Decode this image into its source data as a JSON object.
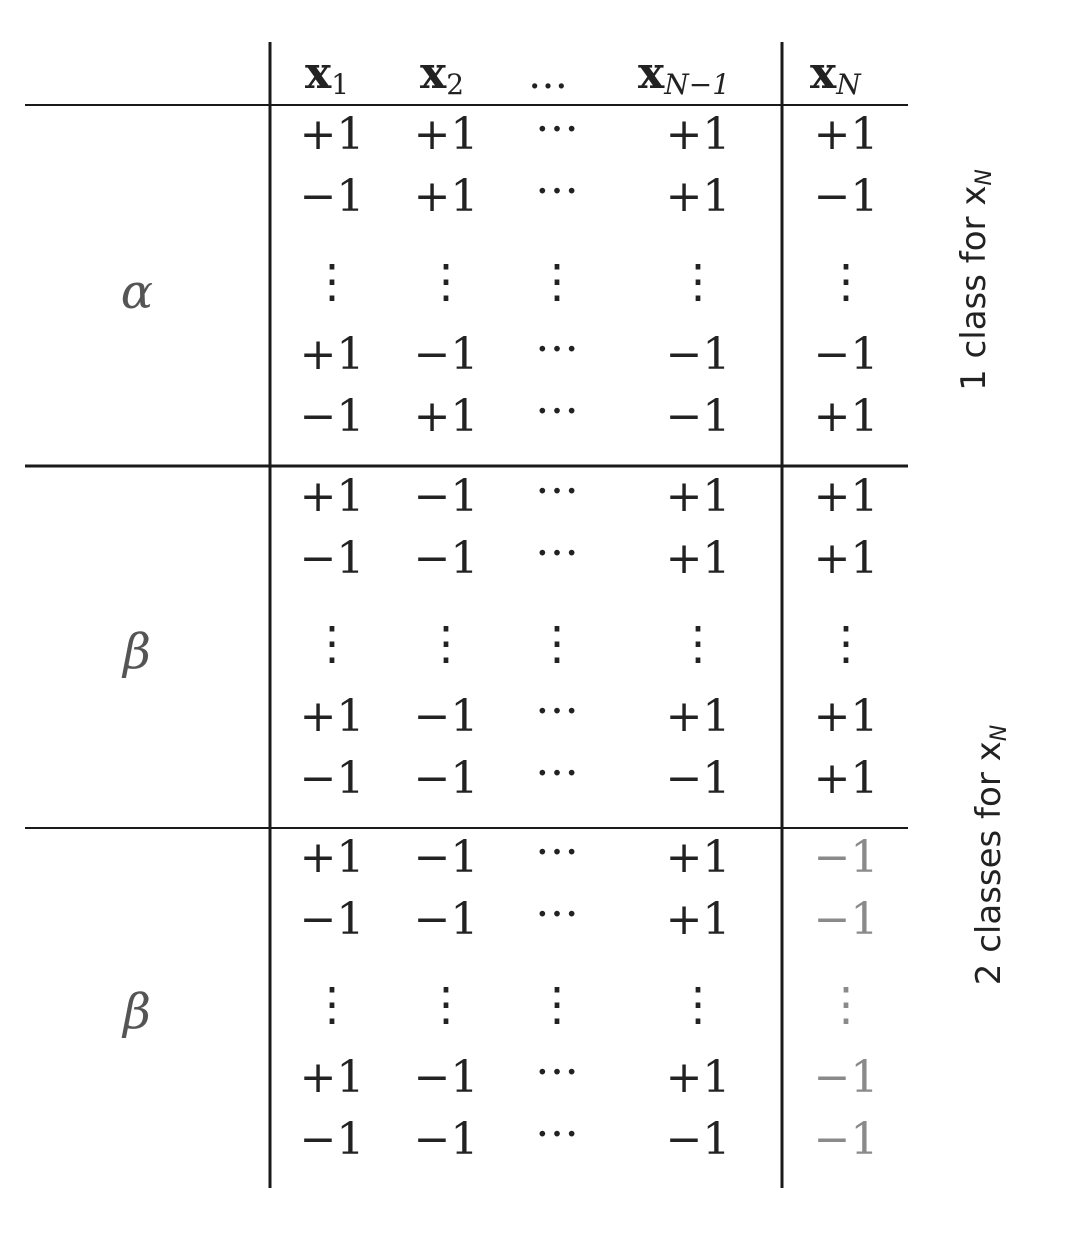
{
  "header": {
    "columns": [
      {
        "base": "x",
        "sub": "1"
      },
      {
        "base": "x",
        "sub": "2"
      },
      {
        "base": "…",
        "sub": ""
      },
      {
        "base": "x",
        "sub": "N−1"
      },
      {
        "base": "x",
        "sub": "N"
      }
    ]
  },
  "groups": [
    {
      "label": "α",
      "rows": [
        [
          "+1",
          "+1",
          "…",
          "+1",
          "+1"
        ],
        [
          "−1",
          "+1",
          "…",
          "+1",
          "−1"
        ],
        [
          "⋮",
          "⋮",
          "⋮",
          "⋮",
          "⋮"
        ],
        [
          "+1",
          "−1",
          "…",
          "−1",
          "−1"
        ],
        [
          "−1",
          "+1",
          "…",
          "−1",
          "+1"
        ]
      ]
    },
    {
      "label": "β",
      "rows": [
        [
          "+1",
          "−1",
          "…",
          "+1",
          "+1"
        ],
        [
          "−1",
          "−1",
          "…",
          "+1",
          "+1"
        ],
        [
          "⋮",
          "⋮",
          "⋮",
          "⋮",
          "⋮"
        ],
        [
          "+1",
          "−1",
          "…",
          "+1",
          "+1"
        ],
        [
          "−1",
          "−1",
          "…",
          "−1",
          "+1"
        ]
      ]
    },
    {
      "label": "β",
      "rows": [
        [
          "+1",
          "−1",
          "…",
          "+1",
          "−1"
        ],
        [
          "−1",
          "−1",
          "…",
          "+1",
          "−1"
        ],
        [
          "⋮",
          "⋮",
          "⋮",
          "⋮",
          "⋮"
        ],
        [
          "+1",
          "−1",
          "…",
          "+1",
          "−1"
        ],
        [
          "−1",
          "−1",
          "…",
          "−1",
          "−1"
        ]
      ]
    }
  ],
  "side_labels": [
    {
      "text": "1 class for x",
      "sub": "N"
    },
    {
      "text": "2 classes for x",
      "sub": "N"
    }
  ],
  "colors": {
    "ink": "#222222",
    "faded": "#8a8a8a",
    "line": "#1a1a1a"
  }
}
